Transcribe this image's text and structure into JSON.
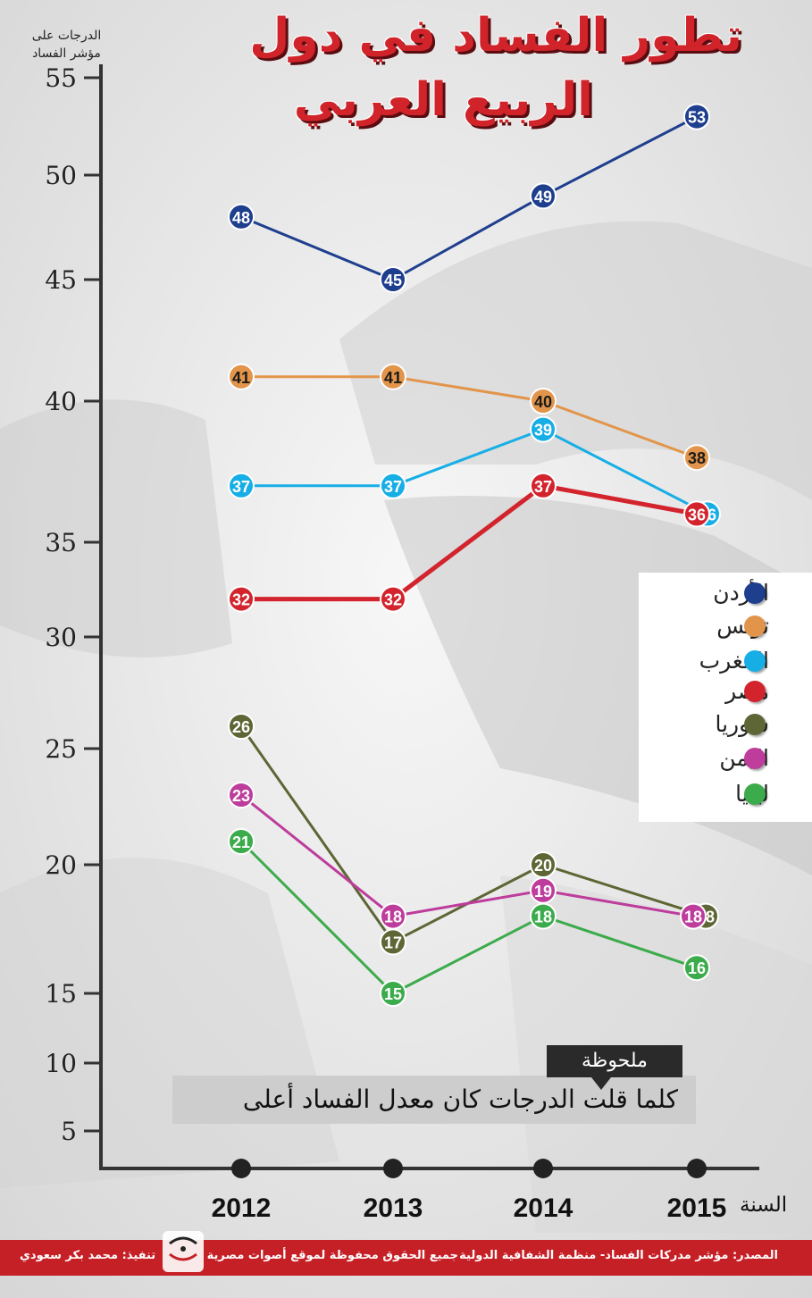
{
  "title": {
    "line1": "تطور الفساد في دول",
    "line2": "الربيع العربي"
  },
  "axis": {
    "ylabel": "الدرجات على مؤشر الفساد",
    "xlabel": "السنة"
  },
  "note": {
    "tag": "ملحوظة",
    "text": "كلما قلت الدرجات كان معدل الفساد أعلى"
  },
  "footer": {
    "source": "المصدر: مؤشر مدركات الفساد- منظمة الشفافية الدولية",
    "rights": "جميع الحقوق محفوظة لموقع أصوات مصرية",
    "credit": "تنفيذ: محمد بكر سعودي",
    "logo_text": "أصوات مصرية"
  },
  "colors": {
    "title": "#d0232a",
    "footer": "#c62027",
    "axis": "#333333"
  },
  "chart_data": {
    "type": "line",
    "x": [
      "2012",
      "2013",
      "2014",
      "2015"
    ],
    "ylim": [
      5,
      55
    ],
    "yticks": [
      5,
      10,
      15,
      20,
      25,
      30,
      35,
      40,
      45,
      50,
      55
    ],
    "series": [
      {
        "name": "الأردن",
        "color": "#1e3e8e",
        "values": [
          48,
          45,
          49,
          53
        ]
      },
      {
        "name": "تونس",
        "color": "#e2954a",
        "values": [
          41,
          41,
          40,
          38
        ]
      },
      {
        "name": "المغرب",
        "color": "#17aee6",
        "values": [
          37,
          37,
          39,
          36
        ]
      },
      {
        "name": "مصر",
        "color": "#d3232c",
        "values": [
          32,
          32,
          37,
          36
        ]
      },
      {
        "name": "سوريا",
        "color": "#5d6634",
        "values": [
          26,
          17,
          20,
          18
        ]
      },
      {
        "name": "اليمن",
        "color": "#bd3c9c",
        "values": [
          23,
          18,
          19,
          18
        ]
      },
      {
        "name": "ليبيا",
        "color": "#3cab4b",
        "values": [
          21,
          15,
          18,
          16
        ]
      }
    ]
  }
}
